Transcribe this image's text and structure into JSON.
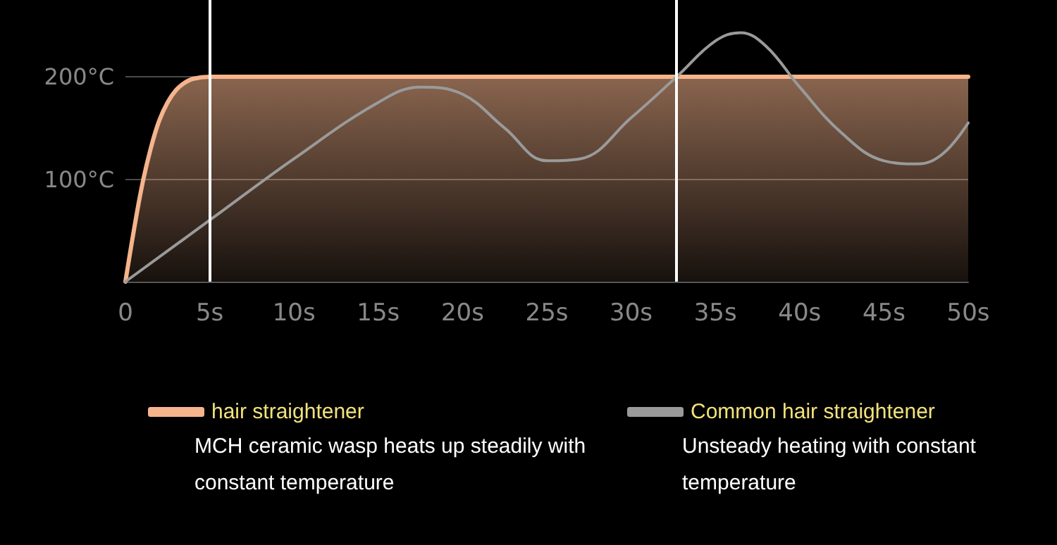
{
  "chart_data": {
    "type": "line",
    "xlim": [
      0,
      50
    ],
    "xticks": [
      0,
      {
        "value": 5,
        "label": "5s"
      },
      {
        "value": 10,
        "label": "10s"
      },
      {
        "value": 15,
        "label": "15s"
      },
      {
        "value": 20,
        "label": "20s"
      },
      {
        "value": 25,
        "label": "25s"
      },
      {
        "value": 30,
        "label": "30s"
      },
      {
        "value": 35,
        "label": "35s"
      },
      {
        "value": 40,
        "label": "40s"
      },
      {
        "value": 45,
        "label": "45s"
      },
      {
        "value": 50,
        "label": "50s"
      }
    ],
    "ylim": [
      0,
      275
    ],
    "yticks": [
      {
        "value": 100,
        "label": "100°C"
      },
      {
        "value": 200,
        "label": "200°C"
      }
    ],
    "grid": "y",
    "legend": "bottom",
    "marker": "none",
    "line_style": "solid",
    "series": [
      {
        "name": "hair straightener",
        "type": "area",
        "color": "#f5b48c",
        "x": [
          0,
          0.5,
          1,
          1.5,
          2,
          2.5,
          3,
          3.5,
          4,
          5,
          10,
          20,
          30,
          40,
          50
        ],
        "values": [
          0,
          50,
          95,
          130,
          157,
          175,
          187,
          194,
          198,
          200,
          200,
          200,
          200,
          200,
          200
        ]
      },
      {
        "name": "Common hair straightener",
        "color": "#9a9a9a",
        "x": [
          0,
          5,
          10,
          15,
          17.5,
          20,
          22.5,
          25,
          27,
          30,
          32.7,
          35,
          36.5,
          38,
          40,
          42.5,
          45,
          47,
          48.5,
          50
        ],
        "values": [
          0,
          60,
          120,
          175,
          190,
          183,
          150,
          118,
          120,
          160,
          200,
          235,
          243,
          230,
          190,
          145,
          118,
          115,
          125,
          155
        ]
      }
    ],
    "ref_lines": [
      {
        "axis": "x",
        "value": 5,
        "color": "#ffffff"
      },
      {
        "axis": "x",
        "value": 32.7,
        "color": "#ffffff"
      }
    ],
    "annotations": [
      "MCH ceramic wasp heats up steadily with constant temperature",
      "Unsteady heating with constant temperature"
    ]
  }
}
